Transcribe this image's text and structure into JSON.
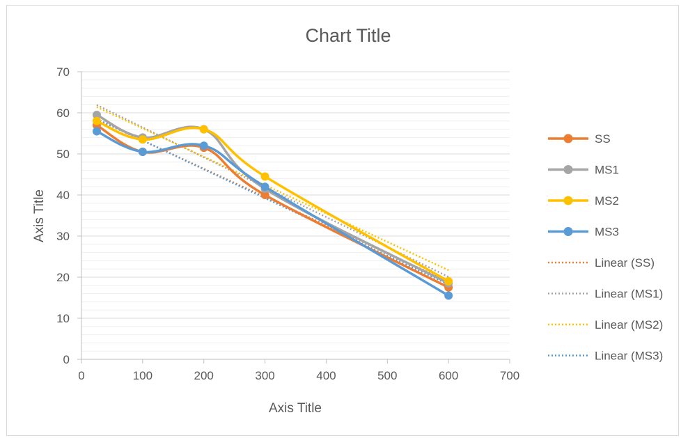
{
  "chart_data": {
    "type": "line",
    "title": "Chart Title",
    "xlabel": "Axis Title",
    "ylabel": "Axis Title",
    "xlim": [
      0,
      700
    ],
    "ylim": [
      0,
      70
    ],
    "xticks": [
      "0",
      "100",
      "200",
      "300",
      "400",
      "500",
      "600",
      "700"
    ],
    "yticks": [
      "0",
      "10",
      "20",
      "30",
      "40",
      "50",
      "60",
      "70"
    ],
    "grid": "major and minor horizontal",
    "legend_position": "right",
    "x": [
      25,
      100,
      200,
      300,
      600
    ],
    "series": [
      {
        "name": "SS",
        "values": [
          57.0,
          50.5,
          51.5,
          40.0,
          17.5
        ],
        "color": "#ED7D31"
      },
      {
        "name": "MS1",
        "values": [
          59.5,
          54.0,
          56.0,
          41.5,
          18.5
        ],
        "color": "#A5A5A5"
      },
      {
        "name": "MS2",
        "values": [
          58.0,
          53.5,
          56.0,
          44.5,
          19.0
        ],
        "color": "#FFC000"
      },
      {
        "name": "MS3",
        "values": [
          55.5,
          50.5,
          52.0,
          42.0,
          15.5
        ],
        "color": "#5B9BD5"
      }
    ],
    "trendlines": [
      {
        "name": "Linear (SS)",
        "type": "linear",
        "color": "#ED7D31"
      },
      {
        "name": "Linear (MS1)",
        "type": "linear",
        "color": "#A5A5A5"
      },
      {
        "name": "Linear (MS2)",
        "type": "linear",
        "color": "#FFC000"
      },
      {
        "name": "Linear (MS3)",
        "type": "linear",
        "color": "#5B9BD5"
      }
    ]
  }
}
